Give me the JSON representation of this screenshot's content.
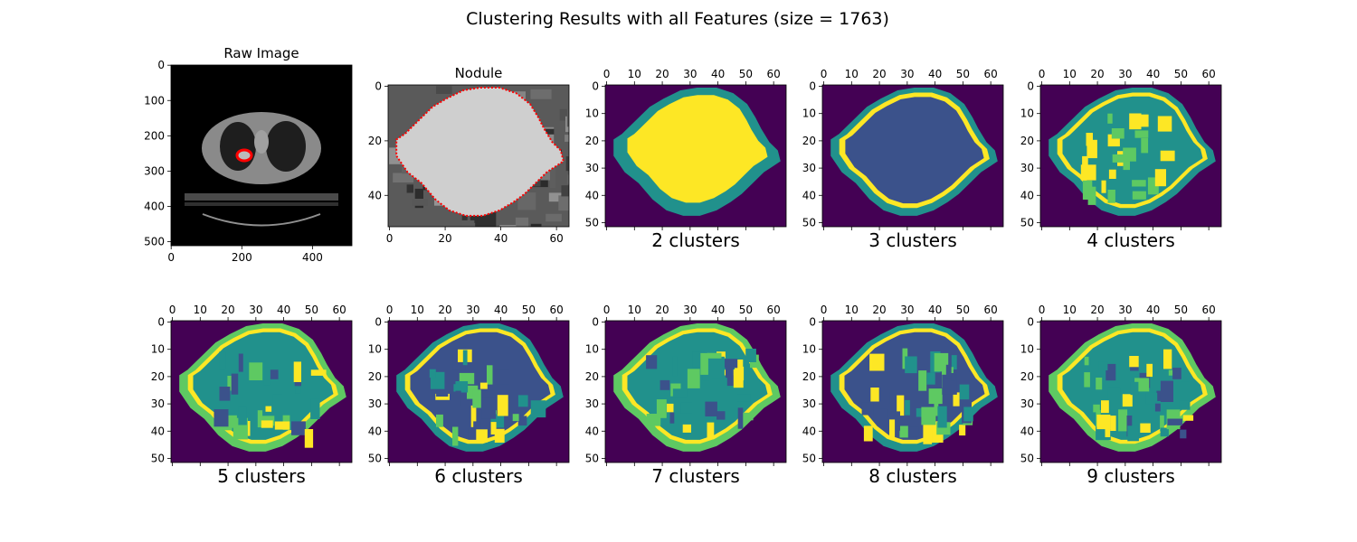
{
  "suptitle": "Clustering Results with all Features (size = 1763)",
  "colors": {
    "viridis": [
      "#440154",
      "#3b528b",
      "#21918c",
      "#5ec962",
      "#fde725"
    ],
    "contour": "#ff0000",
    "ct_body": "#8a8a8a",
    "ct_lung": "#1e1e1e",
    "nodule_gray": "#cfcfcf"
  },
  "chart_data": [
    {
      "type": "image",
      "name": "raw-image",
      "title": "Raw Image",
      "image_shape": [
        512,
        512
      ],
      "xticks": [
        0,
        200,
        400
      ],
      "yticks": [
        0,
        100,
        200,
        300,
        400,
        500
      ],
      "xaxis_position": "bottom",
      "caption": "",
      "content": "grayscale axial CT slice with nodule contour near x=215, y=255"
    },
    {
      "type": "image",
      "name": "nodule",
      "title": "Nodule",
      "image_shape": [
        52,
        65
      ],
      "xticks": [
        0,
        20,
        40,
        60
      ],
      "yticks": [
        0,
        20,
        40
      ],
      "xaxis_position": "bottom",
      "caption": "",
      "content": "grayscale nodule crop with red dotted segmentation contour"
    },
    {
      "type": "heatmap",
      "name": "clusters-2",
      "title": "",
      "clusters": 2,
      "image_shape": [
        52,
        65
      ],
      "xticks": [
        0,
        10,
        20,
        30,
        40,
        50,
        60
      ],
      "yticks": [
        0,
        10,
        20,
        30,
        40,
        50
      ],
      "xaxis_position": "top",
      "caption": "2 clusters"
    },
    {
      "type": "heatmap",
      "name": "clusters-3",
      "title": "",
      "clusters": 3,
      "image_shape": [
        52,
        65
      ],
      "xticks": [
        0,
        10,
        20,
        30,
        40,
        50,
        60
      ],
      "yticks": [
        0,
        10,
        20,
        30,
        40,
        50
      ],
      "xaxis_position": "top",
      "caption": "3 clusters"
    },
    {
      "type": "heatmap",
      "name": "clusters-4",
      "title": "",
      "clusters": 4,
      "image_shape": [
        52,
        65
      ],
      "xticks": [
        0,
        10,
        20,
        30,
        40,
        50,
        60
      ],
      "yticks": [
        0,
        10,
        20,
        30,
        40,
        50
      ],
      "xaxis_position": "top",
      "caption": "4 clusters"
    },
    {
      "type": "heatmap",
      "name": "clusters-5",
      "title": "",
      "clusters": 5,
      "image_shape": [
        52,
        65
      ],
      "xticks": [
        0,
        10,
        20,
        30,
        40,
        50,
        60
      ],
      "yticks": [
        0,
        10,
        20,
        30,
        40,
        50
      ],
      "xaxis_position": "top",
      "caption": "5 clusters"
    },
    {
      "type": "heatmap",
      "name": "clusters-6",
      "title": "",
      "clusters": 6,
      "image_shape": [
        52,
        65
      ],
      "xticks": [
        0,
        10,
        20,
        30,
        40,
        50,
        60
      ],
      "yticks": [
        0,
        10,
        20,
        30,
        40,
        50
      ],
      "xaxis_position": "top",
      "caption": "6 clusters"
    },
    {
      "type": "heatmap",
      "name": "clusters-7",
      "title": "",
      "clusters": 7,
      "image_shape": [
        52,
        65
      ],
      "xticks": [
        0,
        10,
        20,
        30,
        40,
        50,
        60
      ],
      "yticks": [
        0,
        10,
        20,
        30,
        40,
        50
      ],
      "xaxis_position": "top",
      "caption": "7 clusters"
    },
    {
      "type": "heatmap",
      "name": "clusters-8",
      "title": "",
      "clusters": 8,
      "image_shape": [
        52,
        65
      ],
      "xticks": [
        0,
        10,
        20,
        30,
        40,
        50,
        60
      ],
      "yticks": [
        0,
        10,
        20,
        30,
        40,
        50
      ],
      "xaxis_position": "top",
      "caption": "8 clusters"
    },
    {
      "type": "heatmap",
      "name": "clusters-9",
      "title": "",
      "clusters": 9,
      "image_shape": [
        52,
        65
      ],
      "xticks": [
        0,
        10,
        20,
        30,
        40,
        50,
        60
      ],
      "yticks": [
        0,
        10,
        20,
        30,
        40,
        50
      ],
      "xaxis_position": "top",
      "caption": "9 clusters"
    }
  ]
}
